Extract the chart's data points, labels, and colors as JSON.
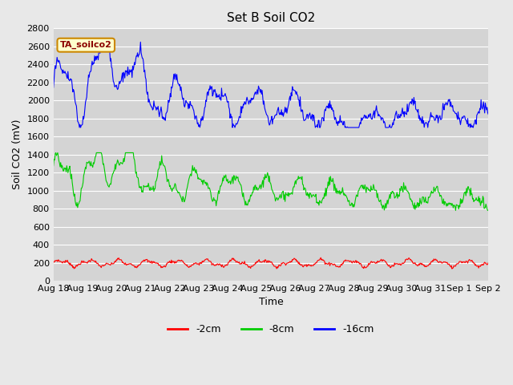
{
  "title": "Set B Soil CO2",
  "xlabel": "Time",
  "ylabel": "Soil CO2 (mV)",
  "ylim": [
    0,
    2800
  ],
  "legend_label": "TA_soilco2",
  "series_labels": [
    "-2cm",
    "-8cm",
    "-16cm"
  ],
  "series_colors": [
    "#ff0000",
    "#00cc00",
    "#0000ff"
  ],
  "bg_color": "#e8e8e8",
  "plot_bg": "#d4d4d4",
  "xtick_labels": [
    "Aug 18",
    "Aug 19",
    "Aug 20",
    "Aug 21",
    "Aug 22",
    "Aug 23",
    "Aug 24",
    "Aug 25",
    "Aug 26",
    "Aug 27",
    "Aug 28",
    "Aug 29",
    "Aug 30",
    "Aug 31",
    "Sep 1",
    "Sep 2"
  ],
  "linewidth": 0.8,
  "figsize": [
    6.4,
    4.8
  ],
  "dpi": 100
}
